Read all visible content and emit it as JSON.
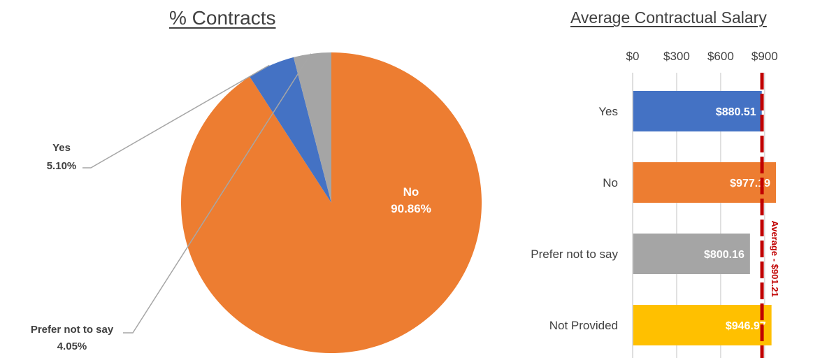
{
  "chart_data": [
    {
      "type": "pie",
      "title": "% Contracts",
      "slices": [
        {
          "label": "No",
          "value": 90.86,
          "display": "90.86%",
          "color": "#ED7D31"
        },
        {
          "label": "Yes",
          "value": 5.1,
          "display": "5.10%",
          "color": "#4472C4"
        },
        {
          "label": "Prefer not to say",
          "value": 4.05,
          "display": "4.05%",
          "color": "#A5A5A5"
        }
      ]
    },
    {
      "type": "bar",
      "orientation": "horizontal",
      "title": "Average Contractual Salary",
      "categories": [
        "Yes",
        "No",
        "Prefer not to say",
        "Not Provided"
      ],
      "values": [
        880.51,
        977.19,
        800.16,
        946.97
      ],
      "value_labels": [
        "$880.51",
        "$977.19",
        "$800.16",
        "$946.97"
      ],
      "colors": [
        "#4472C4",
        "#ED7D31",
        "#A5A5A5",
        "#FFC000"
      ],
      "xlim": [
        0,
        900
      ],
      "ticks": [
        "$0",
        "$300",
        "$600",
        "$900"
      ],
      "tick_values": [
        0,
        300,
        600,
        900
      ],
      "grid": true,
      "reference_line": {
        "value": 901.21,
        "label": "Average - $901.21",
        "color": "#C00000"
      }
    }
  ]
}
